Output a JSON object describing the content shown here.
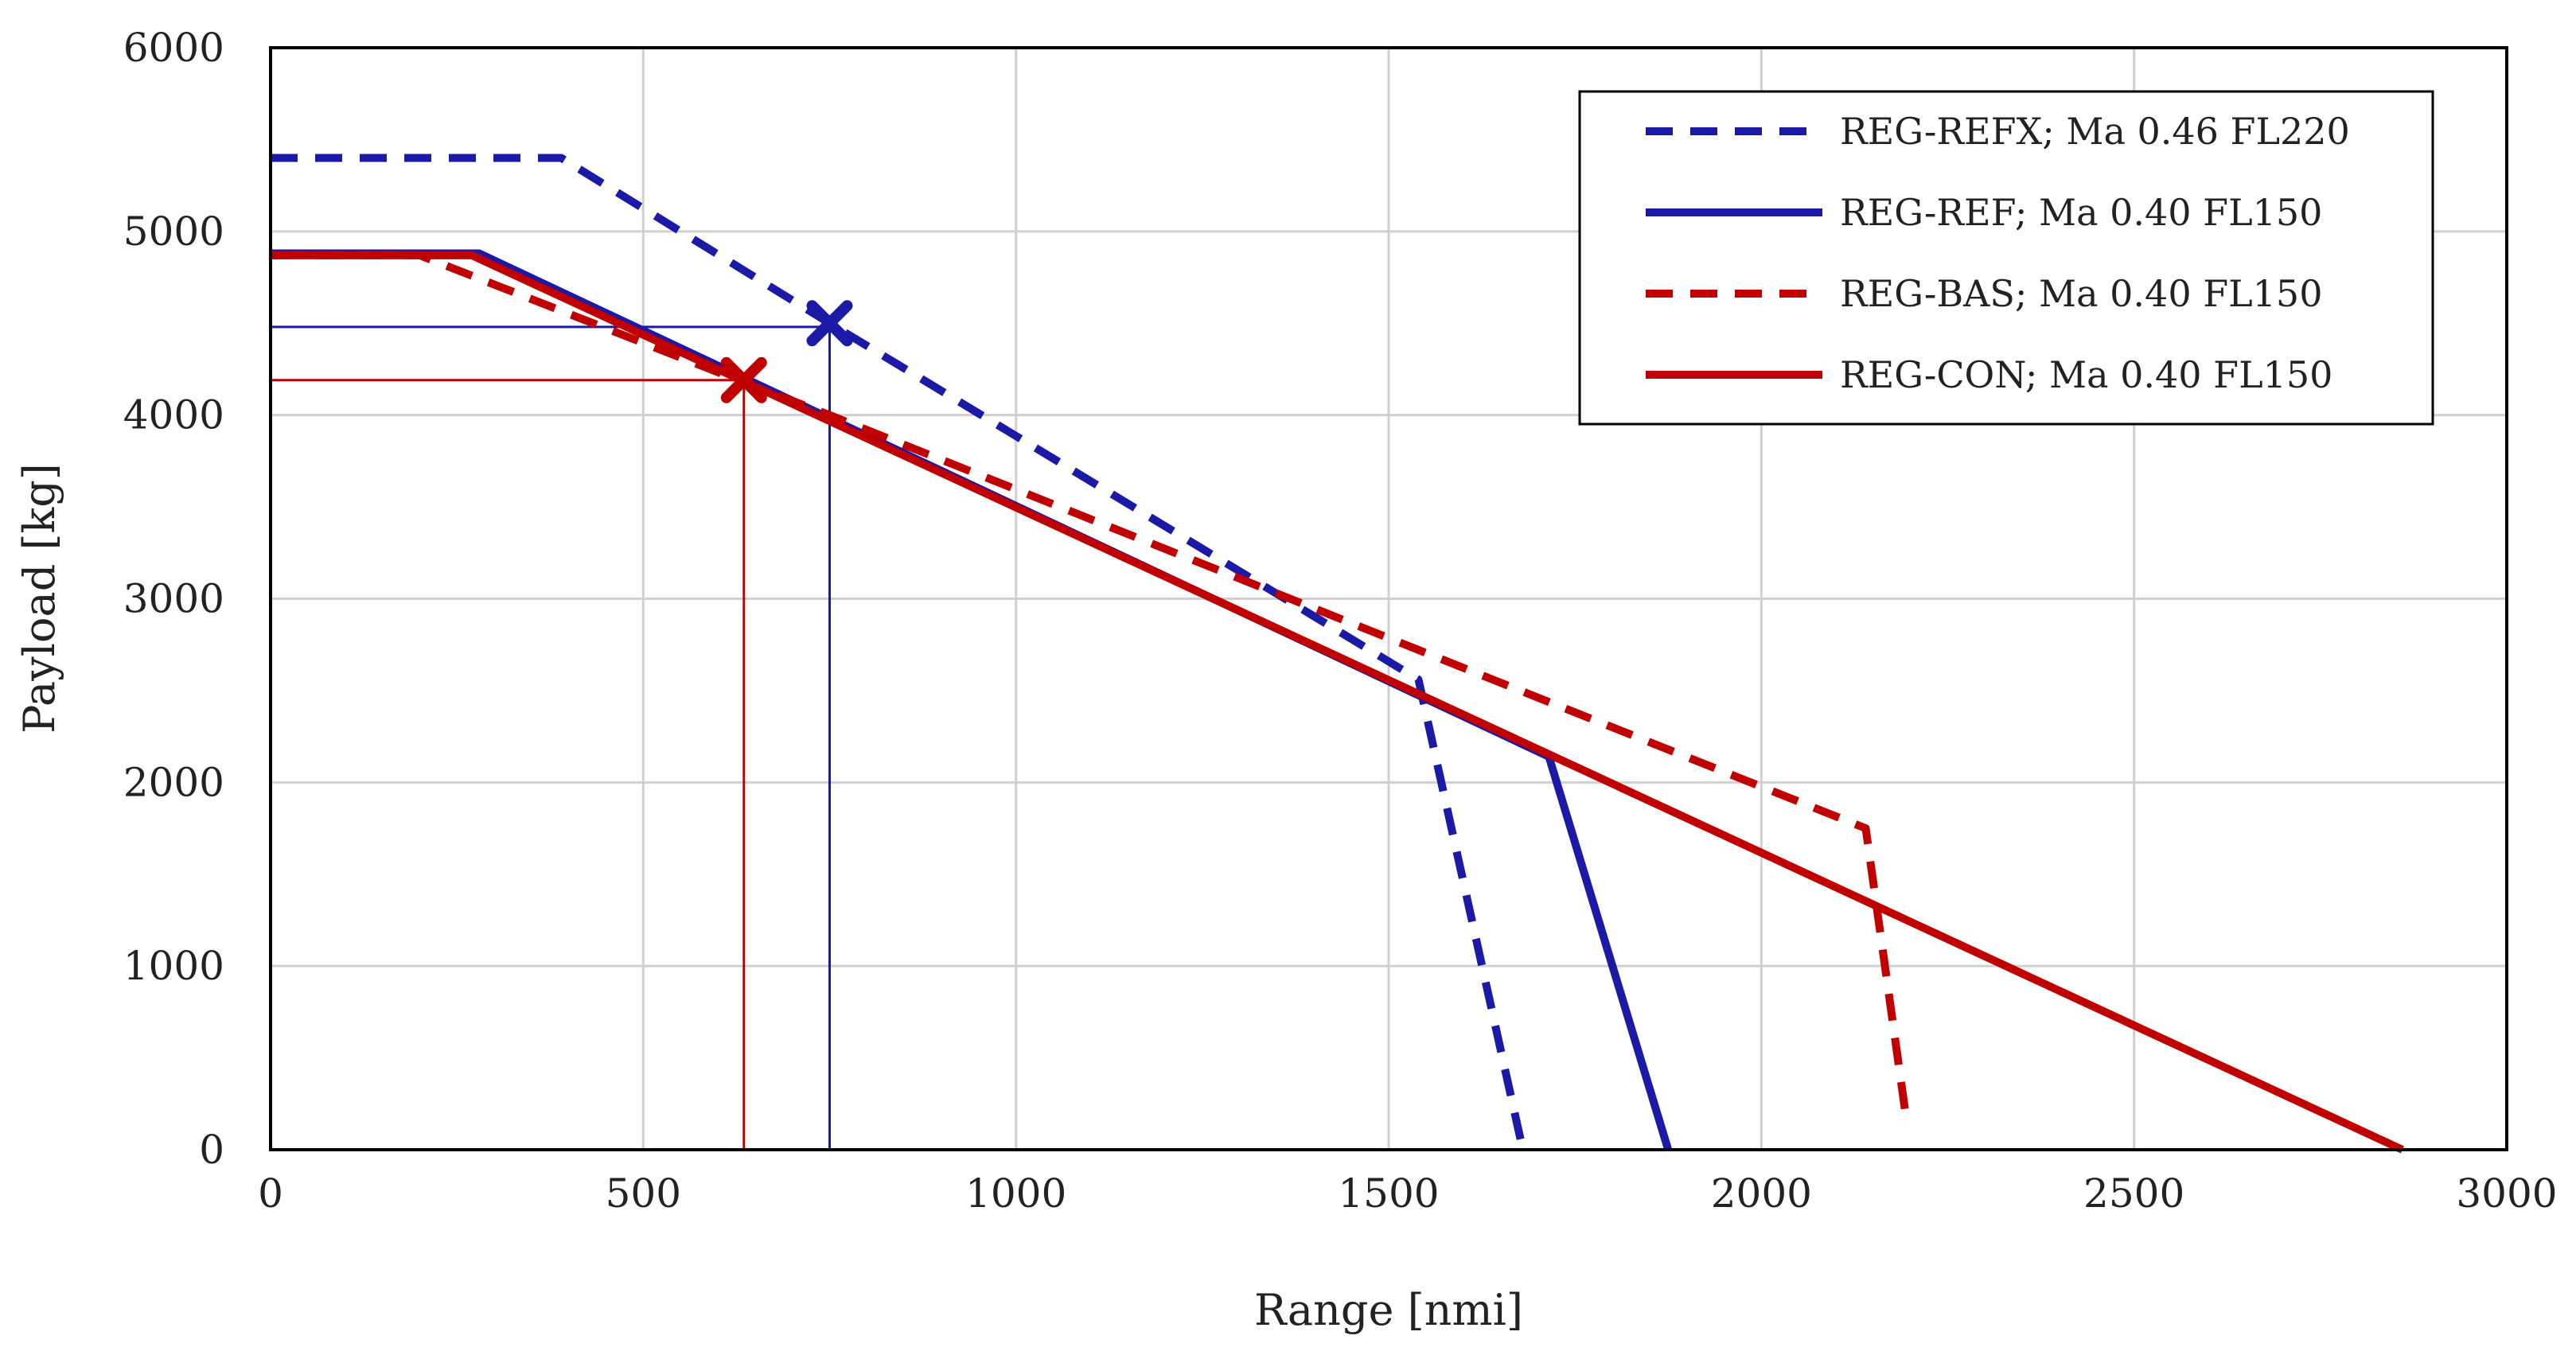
{
  "chart_data": {
    "type": "line",
    "title": "",
    "xlabel": "Range [nmi]",
    "ylabel": "Payload [kg]",
    "xlim": [
      0,
      3000
    ],
    "ylim": [
      0,
      6000
    ],
    "xticks": [
      0,
      500,
      1000,
      1500,
      2000,
      2500,
      3000
    ],
    "yticks": [
      0,
      1000,
      2000,
      3000,
      4000,
      5000,
      6000
    ],
    "xtick_labels": [
      "0",
      "500",
      "1000",
      "1500",
      "2000",
      "2500",
      "3000"
    ],
    "ytick_labels": [
      "0",
      "1000",
      "2000",
      "3000",
      "4000",
      "5000",
      "6000"
    ],
    "grid": true,
    "legend_position": "top-right",
    "series": [
      {
        "name": "REG-REFX; Ma 0.46 FL220",
        "color": "#1a1aa6",
        "dash": "dashed",
        "points": [
          [
            0,
            5400
          ],
          [
            390,
            5400
          ],
          [
            750,
            4500
          ],
          [
            1540,
            2560
          ],
          [
            1680,
            0
          ]
        ]
      },
      {
        "name": "REG-REF; Ma 0.40 FL150",
        "color": "#1a1aa6",
        "dash": "solid",
        "points": [
          [
            0,
            4880
          ],
          [
            280,
            4880
          ],
          [
            1715,
            2140
          ],
          [
            1875,
            0
          ]
        ]
      },
      {
        "name": "REG-BAS; Ma 0.40 FL150",
        "color": "#c00000",
        "dash": "dashed",
        "points": [
          [
            0,
            4870
          ],
          [
            200,
            4870
          ],
          [
            640,
            4170
          ],
          [
            750,
            4000
          ],
          [
            2140,
            1750
          ],
          [
            2195,
            150
          ]
        ]
      },
      {
        "name": "REG-CON; Ma 0.40 FL150",
        "color": "#c00000",
        "dash": "solid",
        "points": [
          [
            0,
            4870
          ],
          [
            270,
            4870
          ],
          [
            2860,
            0
          ]
        ]
      }
    ],
    "markers": [
      {
        "name": "REG-REFX design point",
        "color": "#1a1aa6",
        "x": 750,
        "y": 4500,
        "symbol": "x"
      },
      {
        "name": "REG-BAS design point",
        "color": "#c00000",
        "x": 635,
        "y": 4190,
        "symbol": "x"
      }
    ],
    "reference_lines": [
      {
        "color": "#1a1aa6",
        "x": 750,
        "y": 4480
      },
      {
        "color": "#c00000",
        "x": 635,
        "y": 4190
      }
    ]
  }
}
